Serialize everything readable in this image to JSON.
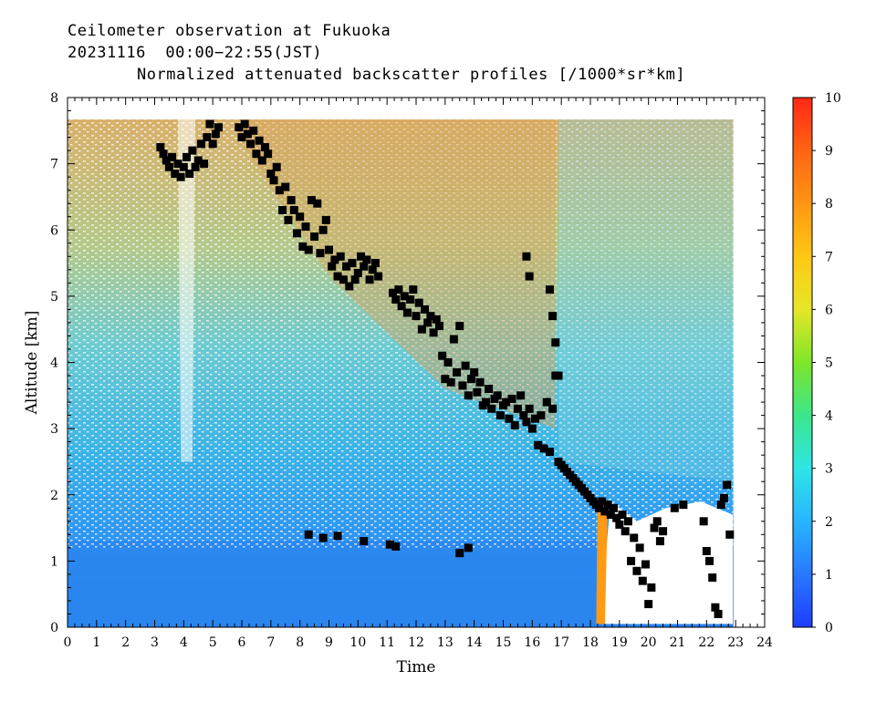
{
  "header": {
    "line1": "Ceilometer observation at Fukuoka",
    "line2": "20231116  00:00−22:55(JST)",
    "line3": "Normalized attenuated backscatter profiles [/1000*sr*km]"
  },
  "chart_data": {
    "type": "heatmap",
    "title": "Normalized attenuated backscatter profiles [/1000*sr*km]",
    "xlabel": "Time",
    "ylabel": "Altitude [km]",
    "xlim": [
      0,
      24
    ],
    "ylim": [
      0,
      8
    ],
    "x_ticks": [
      "0",
      "1",
      "2",
      "3",
      "4",
      "5",
      "6",
      "7",
      "8",
      "9",
      "10",
      "11",
      "12",
      "13",
      "14",
      "15",
      "16",
      "17",
      "18",
      "19",
      "20",
      "21",
      "22",
      "23",
      "24"
    ],
    "y_ticks": [
      "0",
      "1",
      "2",
      "3",
      "4",
      "5",
      "6",
      "7",
      "8"
    ],
    "colorbar": {
      "min": 0,
      "max": 10,
      "ticks": [
        "0",
        "1",
        "2",
        "3",
        "4",
        "5",
        "6",
        "7",
        "8",
        "9",
        "10"
      ],
      "colors": [
        "#1e3cff",
        "#2878ff",
        "#28b4ff",
        "#2ee6e6",
        "#3ce68c",
        "#7ee628",
        "#e6e628",
        "#ffc814",
        "#ff9614",
        "#ff6414",
        "#ff2814"
      ]
    },
    "data_extent_hours": [
      0,
      22.92
    ],
    "data_top_km": 7.67,
    "cloud_base_series": {
      "name": "",
      "marker": "black square",
      "points": [
        [
          3.2,
          7.25
        ],
        [
          3.3,
          7.15
        ],
        [
          3.4,
          7.05
        ],
        [
          3.5,
          6.95
        ],
        [
          3.6,
          7.1
        ],
        [
          3.7,
          6.85
        ],
        [
          3.8,
          7.0
        ],
        [
          3.9,
          6.8
        ],
        [
          4.0,
          6.95
        ],
        [
          4.1,
          7.1
        ],
        [
          4.2,
          6.85
        ],
        [
          4.3,
          7.2
        ],
        [
          4.4,
          6.95
        ],
        [
          4.5,
          7.05
        ],
        [
          4.6,
          7.3
        ],
        [
          4.7,
          7.0
        ],
        [
          4.8,
          7.4
        ],
        [
          4.9,
          7.6
        ],
        [
          5.0,
          7.3
        ],
        [
          5.1,
          7.45
        ],
        [
          5.2,
          7.55
        ],
        [
          5.9,
          7.55
        ],
        [
          6.0,
          7.4
        ],
        [
          6.1,
          7.6
        ],
        [
          6.2,
          7.45
        ],
        [
          6.3,
          7.3
        ],
        [
          6.4,
          7.5
        ],
        [
          6.5,
          7.15
        ],
        [
          6.6,
          7.35
        ],
        [
          6.7,
          7.05
        ],
        [
          6.8,
          7.25
        ],
        [
          6.9,
          7.15
        ],
        [
          7.0,
          6.85
        ],
        [
          7.1,
          6.75
        ],
        [
          7.2,
          6.95
        ],
        [
          7.3,
          6.6
        ],
        [
          7.4,
          6.3
        ],
        [
          7.5,
          6.65
        ],
        [
          7.6,
          6.15
        ],
        [
          7.7,
          6.45
        ],
        [
          7.8,
          6.3
        ],
        [
          7.9,
          5.95
        ],
        [
          8.0,
          6.2
        ],
        [
          8.1,
          5.75
        ],
        [
          8.2,
          6.05
        ],
        [
          8.3,
          5.7
        ],
        [
          8.4,
          6.45
        ],
        [
          8.5,
          5.9
        ],
        [
          8.6,
          6.4
        ],
        [
          8.7,
          5.65
        ],
        [
          8.8,
          6.0
        ],
        [
          8.9,
          6.15
        ],
        [
          9.0,
          5.7
        ],
        [
          9.1,
          5.45
        ],
        [
          9.2,
          5.55
        ],
        [
          9.3,
          5.3
        ],
        [
          9.4,
          5.6
        ],
        [
          9.5,
          5.25
        ],
        [
          9.6,
          5.45
        ],
        [
          9.7,
          5.15
        ],
        [
          9.8,
          5.5
        ],
        [
          9.9,
          5.25
        ],
        [
          10.0,
          5.35
        ],
        [
          10.1,
          5.6
        ],
        [
          10.2,
          5.45
        ],
        [
          10.3,
          5.55
        ],
        [
          10.4,
          5.25
        ],
        [
          10.5,
          5.4
        ],
        [
          10.6,
          5.5
        ],
        [
          10.7,
          5.3
        ],
        [
          11.2,
          5.05
        ],
        [
          11.3,
          4.95
        ],
        [
          11.4,
          5.1
        ],
        [
          11.5,
          4.85
        ],
        [
          11.6,
          5.0
        ],
        [
          11.7,
          4.75
        ],
        [
          11.8,
          4.95
        ],
        [
          11.9,
          5.1
        ],
        [
          12.0,
          4.7
        ],
        [
          12.1,
          4.9
        ],
        [
          12.2,
          4.5
        ],
        [
          12.3,
          4.8
        ],
        [
          12.4,
          4.6
        ],
        [
          12.5,
          4.7
        ],
        [
          12.6,
          4.45
        ],
        [
          12.7,
          4.65
        ],
        [
          12.8,
          4.55
        ],
        [
          12.9,
          4.1
        ],
        [
          13.0,
          3.75
        ],
        [
          13.1,
          4.0
        ],
        [
          13.2,
          3.7
        ],
        [
          13.3,
          4.35
        ],
        [
          13.4,
          3.85
        ],
        [
          13.5,
          4.55
        ],
        [
          13.6,
          3.65
        ],
        [
          13.7,
          3.95
        ],
        [
          13.8,
          3.5
        ],
        [
          13.9,
          3.75
        ],
        [
          14.0,
          3.85
        ],
        [
          14.1,
          3.55
        ],
        [
          14.2,
          3.7
        ],
        [
          14.3,
          3.35
        ],
        [
          14.4,
          3.4
        ],
        [
          14.5,
          3.6
        ],
        [
          14.6,
          3.3
        ],
        [
          14.7,
          3.45
        ],
        [
          14.8,
          3.5
        ],
        [
          14.9,
          3.2
        ],
        [
          15.0,
          3.35
        ],
        [
          15.1,
          3.4
        ],
        [
          15.2,
          3.15
        ],
        [
          15.3,
          3.45
        ],
        [
          15.4,
          3.05
        ],
        [
          15.5,
          3.3
        ],
        [
          15.6,
          3.5
        ],
        [
          15.7,
          3.2
        ],
        [
          15.8,
          3.1
        ],
        [
          15.9,
          3.3
        ],
        [
          16.0,
          3.0
        ],
        [
          16.1,
          3.15
        ],
        [
          16.2,
          2.75
        ],
        [
          16.3,
          3.2
        ],
        [
          16.4,
          2.7
        ],
        [
          16.5,
          3.4
        ],
        [
          16.6,
          2.65
        ],
        [
          16.7,
          3.3
        ],
        [
          16.8,
          3.8
        ],
        [
          16.9,
          2.5
        ],
        [
          17.0,
          2.45
        ],
        [
          17.1,
          2.4
        ],
        [
          17.2,
          2.35
        ],
        [
          17.3,
          2.3
        ],
        [
          17.4,
          2.25
        ],
        [
          17.5,
          2.2
        ],
        [
          17.6,
          2.15
        ],
        [
          17.7,
          2.1
        ],
        [
          17.8,
          2.05
        ],
        [
          17.9,
          2.0
        ],
        [
          18.0,
          1.95
        ],
        [
          18.1,
          1.9
        ],
        [
          18.2,
          1.85
        ],
        [
          18.3,
          1.8
        ],
        [
          18.4,
          1.9
        ],
        [
          18.5,
          1.75
        ],
        [
          18.6,
          1.85
        ],
        [
          18.7,
          1.7
        ],
        [
          18.8,
          1.8
        ],
        [
          18.9,
          1.65
        ],
        [
          19.0,
          1.55
        ],
        [
          19.1,
          1.7
        ],
        [
          19.2,
          1.45
        ],
        [
          19.3,
          1.6
        ],
        [
          19.4,
          1.0
        ],
        [
          19.5,
          1.35
        ],
        [
          19.6,
          0.85
        ],
        [
          19.7,
          1.2
        ],
        [
          19.8,
          0.7
        ],
        [
          19.9,
          0.95
        ],
        [
          20.0,
          0.35
        ],
        [
          20.1,
          0.6
        ],
        [
          20.2,
          1.5
        ],
        [
          20.3,
          1.6
        ],
        [
          20.4,
          1.3
        ],
        [
          20.5,
          1.45
        ],
        [
          20.9,
          1.8
        ],
        [
          21.2,
          1.85
        ],
        [
          21.9,
          1.6
        ],
        [
          22.0,
          1.15
        ],
        [
          22.1,
          1.0
        ],
        [
          22.2,
          0.75
        ],
        [
          22.3,
          0.3
        ],
        [
          22.4,
          0.2
        ],
        [
          22.5,
          1.85
        ],
        [
          22.6,
          1.95
        ],
        [
          22.7,
          2.15
        ],
        [
          22.8,
          1.4
        ],
        [
          15.8,
          5.6
        ],
        [
          15.9,
          5.3
        ],
        [
          16.6,
          5.1
        ],
        [
          16.7,
          4.7
        ],
        [
          16.8,
          4.3
        ],
        [
          16.9,
          3.8
        ],
        [
          8.3,
          1.4
        ],
        [
          8.8,
          1.35
        ],
        [
          9.3,
          1.38
        ],
        [
          10.2,
          1.3
        ],
        [
          11.1,
          1.25
        ],
        [
          11.3,
          1.22
        ],
        [
          13.5,
          1.12
        ],
        [
          13.8,
          1.2
        ]
      ]
    }
  }
}
